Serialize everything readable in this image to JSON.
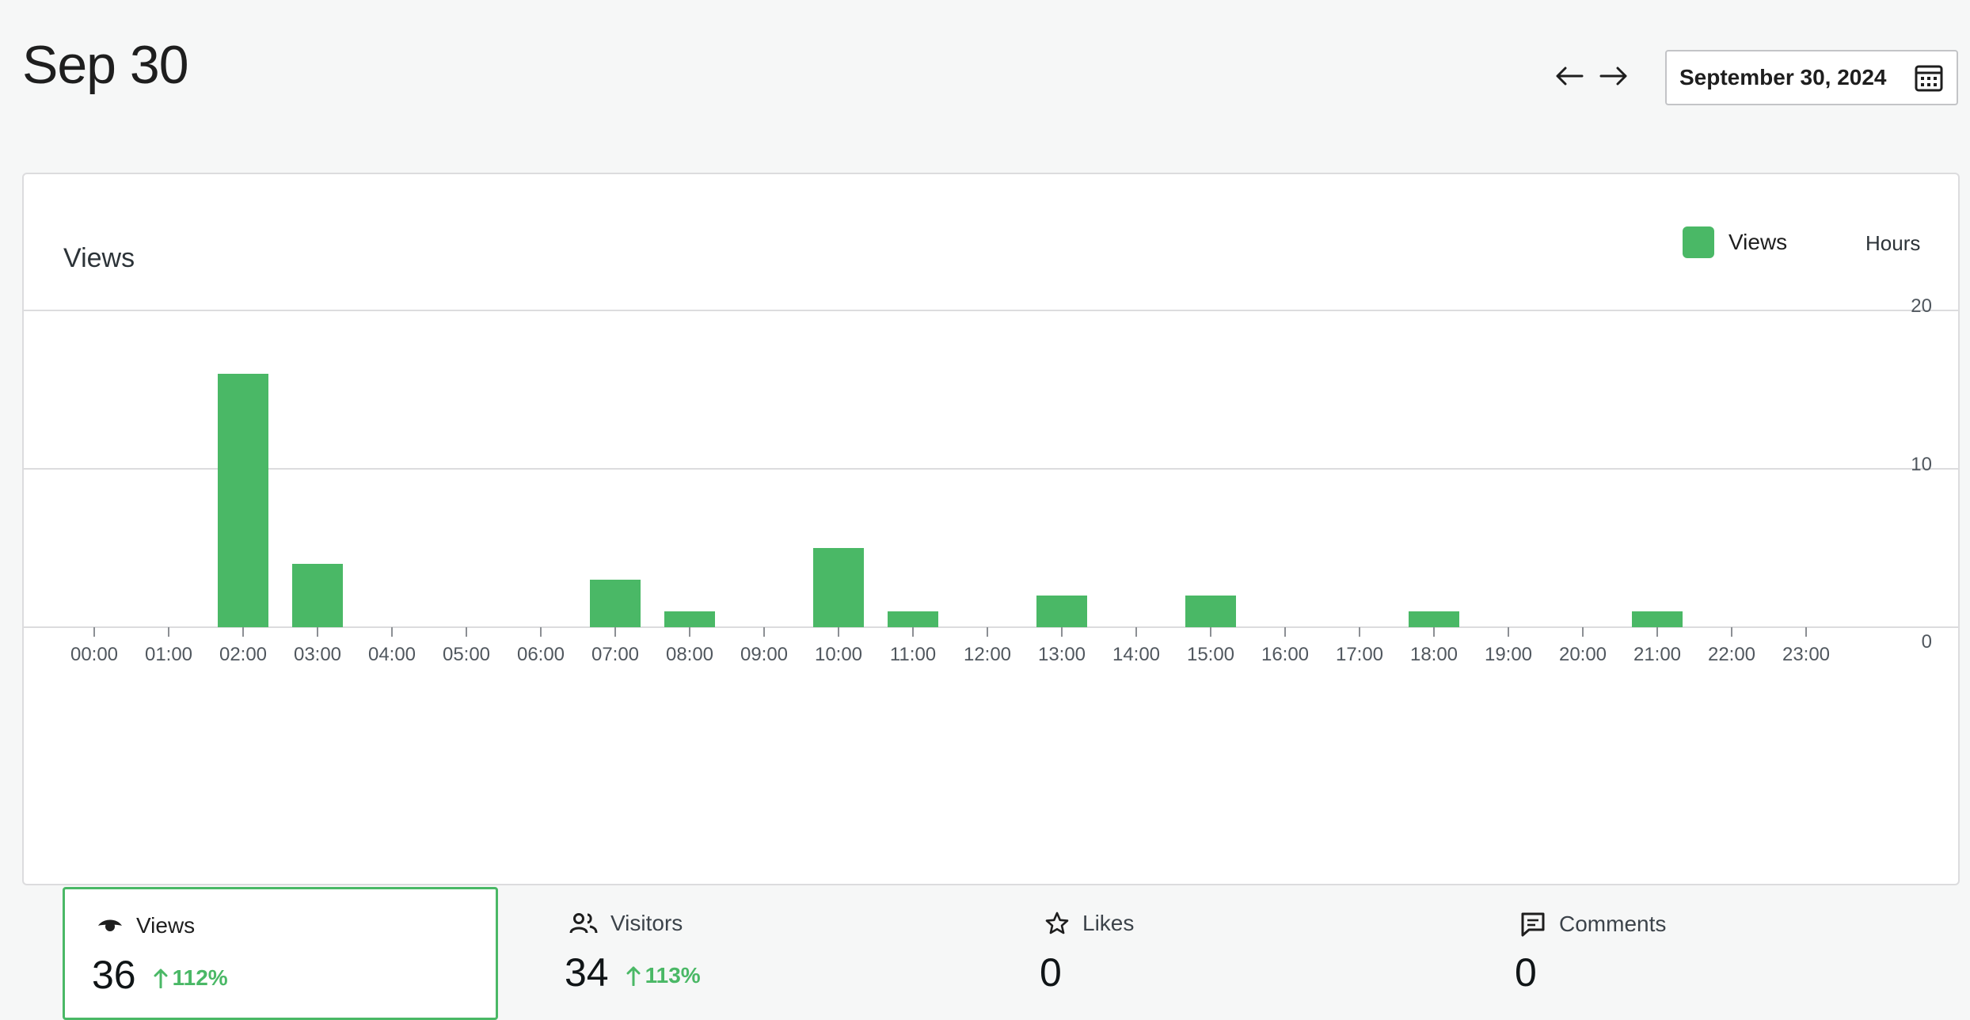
{
  "header": {
    "title": "Sep 30",
    "date_value": "September 30, 2024"
  },
  "colors": {
    "accent": "#4ab866",
    "bar": "#4ab866",
    "page_background": "#f6f7f7",
    "tile_background": "#f6f7f7"
  },
  "icons": {
    "previous": "arrow-left-icon",
    "next": "arrow-right-icon",
    "calendar": "calendar-icon",
    "views": "eye-icon",
    "visitors": "people-icon",
    "likes": "star-icon",
    "comments": "comment-icon",
    "trend": "arrow-up-icon"
  },
  "chart_card": {
    "title": "Views",
    "legend_label": "Views",
    "period_label": "Hours"
  },
  "chart_data": {
    "type": "bar",
    "categories": [
      "00:00",
      "01:00",
      "02:00",
      "03:00",
      "04:00",
      "05:00",
      "06:00",
      "07:00",
      "08:00",
      "09:00",
      "10:00",
      "11:00",
      "12:00",
      "13:00",
      "14:00",
      "15:00",
      "16:00",
      "17:00",
      "18:00",
      "19:00",
      "20:00",
      "21:00",
      "22:00",
      "23:00"
    ],
    "series": [
      {
        "name": "Views",
        "values": [
          0,
          0,
          16,
          4,
          0,
          0,
          0,
          3,
          1,
          0,
          5,
          1,
          0,
          2,
          0,
          2,
          0,
          0,
          1,
          0,
          0,
          1,
          0,
          0
        ]
      }
    ],
    "y_ticks": [
      "20",
      "10",
      "0"
    ],
    "y_tick_values": [
      20,
      10,
      0
    ],
    "ylim": [
      0,
      20
    ],
    "grid": true,
    "legend_position": "top-right",
    "y_axis_position": "right"
  },
  "stats": [
    {
      "label": "Views",
      "value": "36",
      "trend": "112%",
      "selected": true
    },
    {
      "label": "Visitors",
      "value": "34",
      "trend": "113%",
      "selected": false
    },
    {
      "label": "Likes",
      "value": "0",
      "trend": "",
      "selected": false
    },
    {
      "label": "Comments",
      "value": "0",
      "trend": "",
      "selected": false
    }
  ]
}
